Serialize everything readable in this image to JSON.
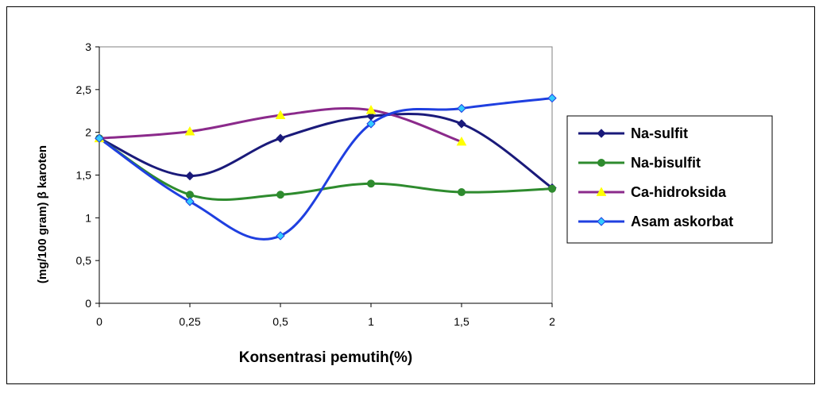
{
  "chart_data": {
    "type": "line",
    "title": "",
    "xlabel": "Konsentrasi pemutih(%)",
    "ylabel": "(mg/100 gram) β karoten",
    "categories": [
      "0",
      "0,25",
      "0,5",
      "1",
      "1,5",
      "2"
    ],
    "yticks": [
      "0",
      "0,5",
      "1",
      "1,5",
      "2",
      "2,5",
      "3"
    ],
    "ylim": [
      0,
      3
    ],
    "grid": false,
    "legend_position": "right",
    "series": [
      {
        "name": "Na-sulfit",
        "values": [
          1.93,
          1.49,
          1.93,
          2.19,
          2.1,
          1.35
        ],
        "color": "#1a1a7a",
        "marker": "diamond",
        "marker_color": "#1a1a7a"
      },
      {
        "name": "Na-bisulfit",
        "values": [
          1.93,
          1.27,
          1.27,
          1.4,
          1.3,
          1.34
        ],
        "color": "#2e8b2e",
        "marker": "circle",
        "marker_color": "#2e8b2e"
      },
      {
        "name": "Ca-hidroksida",
        "values": [
          1.93,
          2.01,
          2.2,
          2.26,
          1.89,
          null
        ],
        "color": "#8b2a8b",
        "marker": "triangle",
        "marker_color": "#ffff00"
      },
      {
        "name": "Asam askorbat",
        "values": [
          1.93,
          1.19,
          0.79,
          2.1,
          2.28,
          2.4
        ],
        "color": "#1f3fe0",
        "marker": "diamond",
        "marker_color": "#33ccff"
      }
    ]
  }
}
